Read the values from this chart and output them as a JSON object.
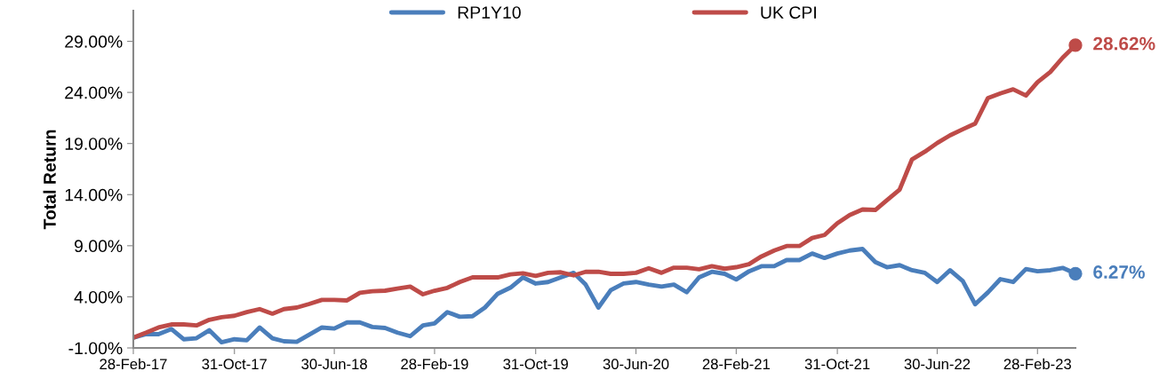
{
  "chart_data": {
    "type": "line",
    "ylabel": "Total Return",
    "x": [
      "2017-02-28",
      "2017-03-31",
      "2017-04-30",
      "2017-05-31",
      "2017-06-30",
      "2017-07-31",
      "2017-08-31",
      "2017-09-30",
      "2017-10-31",
      "2017-11-30",
      "2017-12-31",
      "2018-01-31",
      "2018-02-28",
      "2018-03-31",
      "2018-04-30",
      "2018-05-31",
      "2018-06-30",
      "2018-07-31",
      "2018-08-31",
      "2018-09-30",
      "2018-10-31",
      "2018-11-30",
      "2018-12-31",
      "2019-01-31",
      "2019-02-28",
      "2019-03-31",
      "2019-04-30",
      "2019-05-31",
      "2019-06-30",
      "2019-07-31",
      "2019-08-31",
      "2019-09-30",
      "2019-10-31",
      "2019-11-30",
      "2019-12-31",
      "2020-01-31",
      "2020-02-29",
      "2020-03-31",
      "2020-04-30",
      "2020-05-31",
      "2020-06-30",
      "2020-07-31",
      "2020-08-31",
      "2020-09-30",
      "2020-10-31",
      "2020-11-30",
      "2020-12-31",
      "2021-01-31",
      "2021-02-28",
      "2021-03-31",
      "2021-04-30",
      "2021-05-31",
      "2021-06-30",
      "2021-07-31",
      "2021-08-31",
      "2021-09-30",
      "2021-10-31",
      "2021-11-30",
      "2021-12-31",
      "2022-01-31",
      "2022-02-28",
      "2022-03-31",
      "2022-04-30",
      "2022-05-31",
      "2022-06-30",
      "2022-07-31",
      "2022-08-31",
      "2022-09-30",
      "2022-10-31",
      "2022-11-30",
      "2022-12-31",
      "2023-01-31",
      "2023-02-28",
      "2023-03-31",
      "2023-04-30",
      "2023-05-31"
    ],
    "series": [
      {
        "name": "RP1Y10",
        "color": "#4a7ebb",
        "values": [
          0,
          0.35,
          0.35,
          0.85,
          -0.15,
          -0.05,
          0.73,
          -0.45,
          -0.15,
          -0.25,
          1.0,
          -0.05,
          -0.35,
          -0.4,
          0.3,
          1.0,
          0.9,
          1.5,
          1.5,
          1.05,
          0.95,
          0.5,
          0.15,
          1.2,
          1.4,
          2.5,
          2.05,
          2.1,
          2.95,
          4.3,
          4.9,
          5.9,
          5.3,
          5.45,
          5.9,
          6.35,
          5.2,
          2.95,
          4.65,
          5.3,
          5.45,
          5.2,
          5.0,
          5.2,
          4.45,
          5.9,
          6.45,
          6.25,
          5.7,
          6.5,
          7.0,
          7.0,
          7.6,
          7.6,
          8.24,
          7.8,
          8.24,
          8.53,
          8.68,
          7.4,
          6.9,
          7.1,
          6.6,
          6.35,
          5.45,
          6.6,
          5.55,
          3.27,
          4.44,
          5.73,
          5.45,
          6.72,
          6.5,
          6.6,
          6.83,
          6.27
        ]
      },
      {
        "name": "UK CPI",
        "color": "#be4b48",
        "values": [
          0,
          0.49,
          1.0,
          1.3,
          1.3,
          1.2,
          1.75,
          2.0,
          2.15,
          2.5,
          2.8,
          2.35,
          2.8,
          2.95,
          3.3,
          3.7,
          3.7,
          3.65,
          4.4,
          4.55,
          4.6,
          4.8,
          5.0,
          4.25,
          4.6,
          4.88,
          5.45,
          5.9,
          5.9,
          5.9,
          6.2,
          6.3,
          6.05,
          6.35,
          6.4,
          6.1,
          6.45,
          6.45,
          6.25,
          6.25,
          6.35,
          6.8,
          6.35,
          6.85,
          6.85,
          6.7,
          7.0,
          6.75,
          6.9,
          7.2,
          7.95,
          8.53,
          8.97,
          8.97,
          9.76,
          10.05,
          11.2,
          12.0,
          12.55,
          12.5,
          13.45,
          14.5,
          17.45,
          18.2,
          19.05,
          19.8,
          20.4,
          20.95,
          23.45,
          23.9,
          24.3,
          23.7,
          25.0,
          26.0,
          27.4,
          28.62
        ]
      }
    ],
    "annotations": [
      {
        "text": "6.27%",
        "x": "2023-05-31",
        "y": 6.27
      },
      {
        "text": "28.62%",
        "x": "2023-05-31",
        "y": 28.62
      }
    ],
    "xlim": [
      "2017-02-28",
      "2023-05-31"
    ],
    "xticks": [
      {
        "value": "2017-02-28",
        "label": "28-Feb-17"
      },
      {
        "value": "2017-10-31",
        "label": "31-Oct-17"
      },
      {
        "value": "2018-06-30",
        "label": "30-Jun-18"
      },
      {
        "value": "2019-02-28",
        "label": "28-Feb-19"
      },
      {
        "value": "2019-10-31",
        "label": "31-Oct-19"
      },
      {
        "value": "2020-06-30",
        "label": "30-Jun-20"
      },
      {
        "value": "2021-02-28",
        "label": "28-Feb-21"
      },
      {
        "value": "2021-10-31",
        "label": "31-Oct-21"
      },
      {
        "value": "2022-06-30",
        "label": "30-Jun-22"
      },
      {
        "value": "2023-02-28",
        "label": "28-Feb-23"
      }
    ],
    "ylim": [
      -1,
      32
    ],
    "yticks": [
      {
        "value": -1,
        "label": "-1.00%"
      },
      {
        "value": 4,
        "label": "4.00%"
      },
      {
        "value": 9,
        "label": "9.00%"
      },
      {
        "value": 14,
        "label": "14.00%"
      },
      {
        "value": 19,
        "label": "19.00%"
      },
      {
        "value": 24,
        "label": "24.00%"
      },
      {
        "value": 29,
        "label": "29.00%"
      }
    ],
    "grid": false,
    "legend": "top",
    "marker": "none",
    "line_style": "solid"
  }
}
